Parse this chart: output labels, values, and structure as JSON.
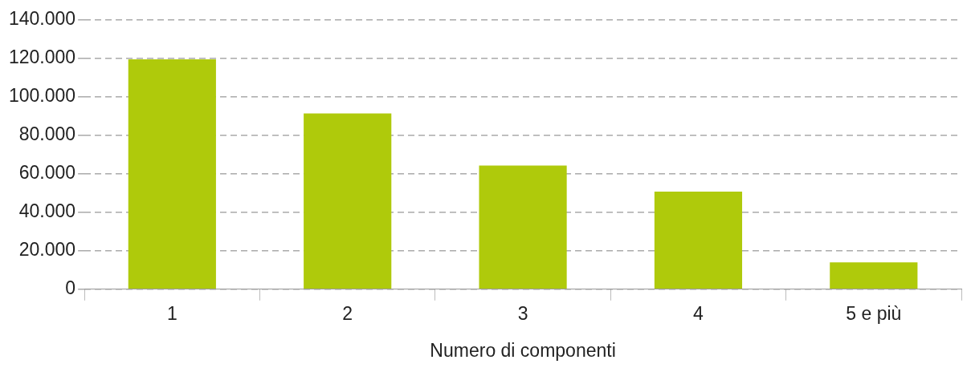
{
  "chart_data": {
    "type": "bar",
    "xlabel": "Numero di componenti",
    "categories": [
      "1",
      "2",
      "3",
      "4",
      "5 e più"
    ],
    "values": [
      119500,
      91400,
      64300,
      50800,
      14000
    ],
    "color": "#afca0b",
    "ylim": [
      0,
      140000
    ],
    "yticks": [
      {
        "value": 0,
        "label": "0"
      },
      {
        "value": 20000,
        "label": "20.000"
      },
      {
        "value": 40000,
        "label": "40.000"
      },
      {
        "value": 60000,
        "label": "60.000"
      },
      {
        "value": 80000,
        "label": "80.000"
      },
      {
        "value": 100000,
        "label": "100.000"
      },
      {
        "value": 120000,
        "label": "120.000"
      },
      {
        "value": 140000,
        "label": "140.000"
      }
    ],
    "grid": "y",
    "legend": false
  }
}
